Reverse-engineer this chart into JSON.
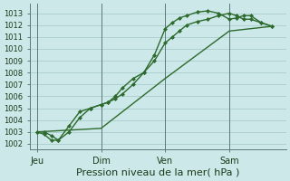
{
  "title": "Pression niveau de la mer( hPa )",
  "bg_color": "#cce8e8",
  "grid_color": "#aacccc",
  "line_color": "#2d6a2d",
  "marker_color": "#2d6a2d",
  "ylim": [
    1001.5,
    1013.8
  ],
  "yticks": [
    1002,
    1003,
    1004,
    1005,
    1006,
    1007,
    1008,
    1009,
    1010,
    1011,
    1012,
    1013
  ],
  "xtick_labels": [
    "Jeu",
    "Dim",
    "Ven",
    "Sam"
  ],
  "xtick_positions": [
    0,
    36,
    72,
    108
  ],
  "vline_positions": [
    0,
    36,
    72,
    108
  ],
  "xlim": [
    -4,
    140
  ],
  "line1_x": [
    0,
    4,
    8,
    12,
    18,
    24,
    30,
    36,
    40,
    44,
    48,
    54,
    60,
    66,
    72,
    76,
    80,
    84,
    90,
    96,
    102,
    108,
    112,
    116,
    120,
    126,
    132
  ],
  "line1_y": [
    1003.0,
    1003.0,
    1002.7,
    1002.3,
    1003.5,
    1004.7,
    1005.0,
    1005.3,
    1005.5,
    1005.8,
    1006.2,
    1007.0,
    1008.0,
    1009.5,
    1011.7,
    1012.2,
    1012.6,
    1012.8,
    1013.1,
    1013.2,
    1013.0,
    1012.5,
    1012.6,
    1012.8,
    1012.8,
    1012.2,
    1011.9
  ],
  "line2_x": [
    0,
    4,
    8,
    12,
    18,
    24,
    30,
    36,
    40,
    44,
    48,
    54,
    60,
    66,
    72,
    76,
    80,
    84,
    90,
    96,
    102,
    108,
    112,
    116,
    120,
    126,
    132
  ],
  "line2_y": [
    1003.0,
    1002.8,
    1002.3,
    1002.3,
    1003.0,
    1004.2,
    1005.0,
    1005.3,
    1005.5,
    1006.0,
    1006.7,
    1007.5,
    1008.0,
    1009.0,
    1010.5,
    1011.0,
    1011.5,
    1012.0,
    1012.3,
    1012.5,
    1012.8,
    1013.0,
    1012.8,
    1012.5,
    1012.5,
    1012.2,
    1011.9
  ],
  "line3_x": [
    0,
    36,
    72,
    108,
    132
  ],
  "line3_y": [
    1003.0,
    1003.3,
    1007.5,
    1011.5,
    1011.9
  ],
  "ytick_fontsize": 6,
  "xtick_fontsize": 7,
  "xlabel_fontsize": 8
}
